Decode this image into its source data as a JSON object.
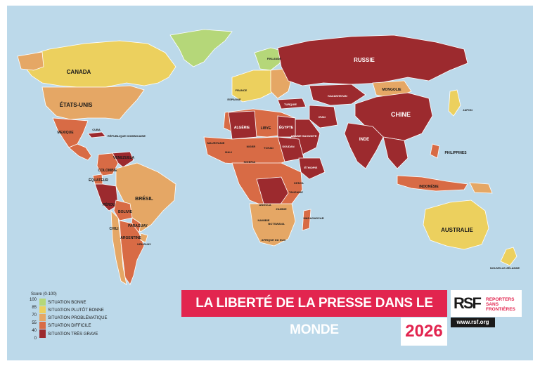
{
  "title": "LA LIBERTÉ DE LA PRESSE DANS LE MONDE",
  "year": "2026",
  "logo": {
    "mark": "RSF",
    "name_line1": "REPORTERS",
    "name_line2": "SANS FRONTIÈRES",
    "url": "www.rsf.org"
  },
  "legend": {
    "title": "Score (0-100)",
    "ticks": [
      "100",
      "85",
      "70",
      "55",
      "40",
      "0"
    ],
    "items": [
      {
        "label": "SITUATION BONNE",
        "color": "#b5d779"
      },
      {
        "label": "SITUATION PLUTÔT BONNE",
        "color": "#ecd05e"
      },
      {
        "label": "SITUATION PROBLÉMATIQUE",
        "color": "#e5a765"
      },
      {
        "label": "SITUATION DIFFICILE",
        "color": "#d86b45"
      },
      {
        "label": "SITUATION TRÈS GRAVE",
        "color": "#9c2a2e"
      }
    ]
  },
  "colors": {
    "ocean": "#bcd9ea",
    "bonne": "#b5d779",
    "plutot_bonne": "#ecd05e",
    "problematique": "#e5a765",
    "difficile": "#d86b45",
    "tres_grave": "#9c2a2e",
    "brand_red": "#e2254f"
  },
  "map_labels": {
    "canada": "CANADA",
    "usa": "ÉTATS-UNIS",
    "mexique": "MEXIQUE",
    "bresil": "BRÉSIL",
    "perou": "PÉROU",
    "bolivie": "BOLIVIE",
    "argentine": "ARGENTINE",
    "chili": "CHILI",
    "colombie": "COLOMBIE",
    "venezuela": "VENEZUELA",
    "equateur": "ÉQUATEUR",
    "paraguay": "PARAGUAY",
    "uruguay": "URUGUAY",
    "russie": "RUSSIE",
    "chine": "CHINE",
    "mongolie": "MONGOLIE",
    "kazakhstan": "KAZAKHSTAN",
    "inde": "INDE",
    "japon": "JAPON",
    "philippines": "PHILIPPINES",
    "indonesie": "INDONÉSIE",
    "australie": "AUSTRALIE",
    "nz": "NOUVELLE-ZÉLANDE",
    "algerie": "ALGÉRIE",
    "libye": "LIBYE",
    "egypte": "ÉGYPTE",
    "soudan": "SOUDAN",
    "mali": "MALI",
    "niger": "NIGER",
    "tchad": "TCHAD",
    "nigeria": "NIGERIA",
    "ethiopie": "ÉTHIOPIE",
    "kenya": "KENYA",
    "rdc": "RÉPUBLIQUE DÉMOCRATIQUE DU CONGO",
    "angola": "ANGOLA",
    "zambie": "ZAMBIE",
    "namibie": "NAMIBIE",
    "botswana": "BOTSWANA",
    "afrique_sud": "AFRIQUE DU SUD",
    "madagascar": "MADAGASCAR",
    "mauritanie": "MAURITANIE",
    "tanzanie": "TANZANIE",
    "iran": "IRAN",
    "turquie": "TURQUIE",
    "arabie": "ARABIE SAOUDITE",
    "groenland": "",
    "france": "FRANCE",
    "espagne": "ESPAGNE",
    "finlande": "FINLANDE",
    "cuba": "CUBA",
    "rep_dom": "RÉPUBLIQUE DOMINICAINE"
  }
}
